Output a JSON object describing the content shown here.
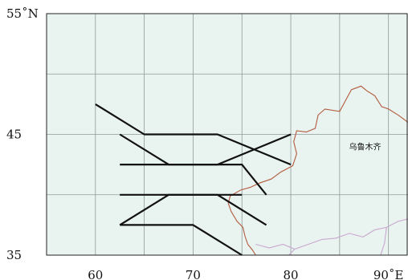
{
  "map": {
    "background": "#e9f3f0",
    "grid_color": "#8f9a97",
    "border_color": "#b35a3c",
    "admin_line_color": "#c9a8cf",
    "track_color": "#111111",
    "lon_range": [
      55,
      92
    ],
    "lat_range": [
      35,
      55
    ],
    "lat_gridlines": [
      40,
      45,
      50
    ],
    "lon_gridlines": [
      60,
      65,
      70,
      75,
      80,
      85,
      90
    ],
    "x_ticks": [
      {
        "value": 60,
        "label": "60"
      },
      {
        "value": 70,
        "label": "70"
      },
      {
        "value": 80,
        "label": "80"
      },
      {
        "value": 90,
        "label": "90˚E"
      }
    ],
    "y_ticks": [
      {
        "value": 55,
        "label": "55˚N"
      },
      {
        "value": 45,
        "label": "45"
      },
      {
        "value": 35,
        "label": "35"
      }
    ],
    "places": [
      {
        "name": "乌鲁木齐",
        "lon": 87.6,
        "lat": 44.0
      }
    ],
    "tracks": [
      [
        [
          60,
          47.5
        ],
        [
          65,
          45
        ],
        [
          72.5,
          45
        ],
        [
          80,
          42.5
        ]
      ],
      [
        [
          62.5,
          45
        ],
        [
          67.5,
          42.5
        ],
        [
          72.5,
          42.5
        ],
        [
          80,
          45
        ]
      ],
      [
        [
          62.5,
          42.5
        ],
        [
          75,
          42.5
        ],
        [
          77.5,
          40
        ]
      ],
      [
        [
          62.5,
          40
        ],
        [
          75,
          40
        ]
      ],
      [
        [
          62.5,
          37.5
        ],
        [
          67.5,
          40
        ],
        [
          72.5,
          40
        ],
        [
          77.5,
          37.5
        ]
      ],
      [
        [
          62.5,
          37.5
        ],
        [
          70,
          37.5
        ],
        [
          75,
          35
        ]
      ]
    ],
    "border": [
      [
        92,
        46.0
      ],
      [
        91,
        46.6
      ],
      [
        90,
        47.1
      ],
      [
        89.3,
        47.3
      ],
      [
        88.6,
        48.2
      ],
      [
        87.8,
        48.6
      ],
      [
        87.2,
        49.0
      ],
      [
        86.2,
        48.7
      ],
      [
        85.6,
        47.8
      ],
      [
        85.0,
        46.9
      ],
      [
        83.5,
        47.1
      ],
      [
        82.8,
        46.6
      ],
      [
        82.5,
        45.5
      ],
      [
        81.6,
        45.2
      ],
      [
        80.6,
        45.3
      ],
      [
        80.3,
        44.4
      ],
      [
        80.6,
        43.4
      ],
      [
        80.2,
        42.4
      ],
      [
        79.0,
        41.9
      ],
      [
        78.0,
        41.3
      ],
      [
        76.9,
        41.0
      ],
      [
        75.8,
        40.6
      ],
      [
        74.9,
        40.4
      ],
      [
        73.8,
        39.9
      ],
      [
        73.6,
        39.3
      ],
      [
        73.9,
        38.6
      ],
      [
        74.5,
        37.8
      ],
      [
        75.1,
        37.3
      ],
      [
        75.3,
        36.6
      ],
      [
        75.6,
        35.9
      ],
      [
        76.1,
        35.4
      ],
      [
        76.4,
        35.0
      ]
    ],
    "admin_lines": [
      [
        [
          76.4,
          35.9
        ],
        [
          77.8,
          35.6
        ],
        [
          79.2,
          35.9
        ],
        [
          80.4,
          35.5
        ],
        [
          81.8,
          35.9
        ],
        [
          83.2,
          36.3
        ],
        [
          84.6,
          36.4
        ],
        [
          86.0,
          36.8
        ],
        [
          87.4,
          36.5
        ],
        [
          88.6,
          37.1
        ],
        [
          89.8,
          37.3
        ],
        [
          91.0,
          37.8
        ],
        [
          92.0,
          38.0
        ]
      ],
      [
        [
          80.4,
          35.5
        ],
        [
          79.8,
          35.0
        ]
      ],
      [
        [
          89.8,
          37.3
        ],
        [
          89.6,
          36.0
        ],
        [
          89.2,
          35.0
        ]
      ]
    ]
  }
}
